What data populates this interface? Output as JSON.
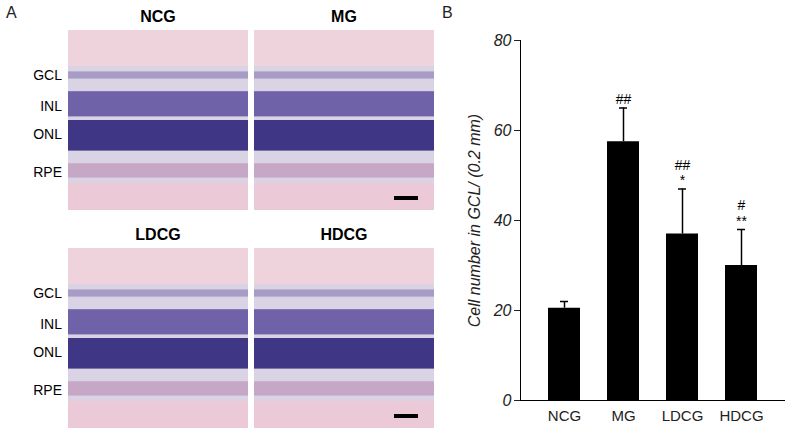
{
  "panel_labels": [
    "A",
    "B"
  ],
  "micrographs": {
    "titles": [
      "NCG",
      "MG",
      "LDCG",
      "HDCG"
    ],
    "layer_labels": [
      "GCL",
      "INL",
      "ONL",
      "RPE"
    ]
  },
  "chart_data": {
    "type": "bar",
    "y_label": "Cell number in GCL/ (0.2 mm)",
    "categories": [
      "NCG",
      "MG",
      "LDCG",
      "HDCG"
    ],
    "values": [
      20.5,
      57.5,
      37,
      30
    ],
    "errors": [
      1.5,
      7.5,
      10,
      8
    ],
    "color": "#000000",
    "ylim": [
      0,
      80
    ],
    "yticks": [
      0,
      20,
      40,
      60,
      80
    ],
    "grid": false,
    "annotations": [
      {
        "category": "MG",
        "lines": [
          "##"
        ]
      },
      {
        "category": "LDCG",
        "lines": [
          "##",
          "*"
        ]
      },
      {
        "category": "HDCG",
        "lines": [
          "#",
          "**"
        ]
      }
    ]
  }
}
